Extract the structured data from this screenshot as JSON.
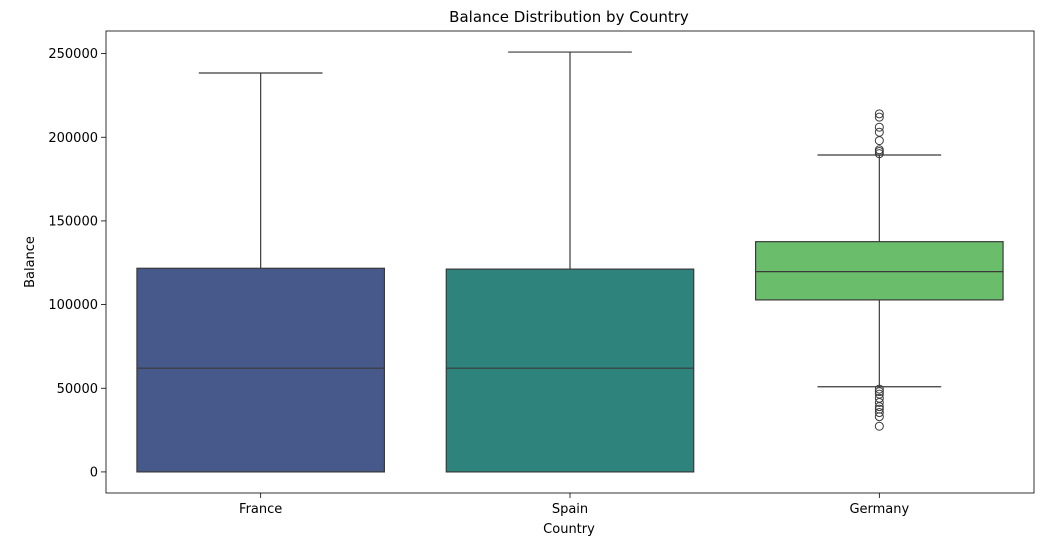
{
  "chart_data": {
    "type": "box",
    "title": "Balance Distribution by Country",
    "xlabel": "Country",
    "ylabel": "Balance",
    "ylim": [
      -12600,
      263500
    ],
    "yticks": [
      0,
      50000,
      100000,
      150000,
      200000,
      250000
    ],
    "ytick_labels": [
      "0",
      "50000",
      "100000",
      "150000",
      "200000",
      "250000"
    ],
    "grid": false,
    "categories": [
      "France",
      "Spain",
      "Germany"
    ],
    "boxes": [
      {
        "category": "France",
        "color": "#46598a",
        "whisker_low": 0,
        "q1": 0,
        "median": 62000,
        "q3": 121700,
        "whisker_high": 238400,
        "outliers": []
      },
      {
        "category": "Spain",
        "color": "#2e847d",
        "whisker_low": 0,
        "q1": 0,
        "median": 62000,
        "q3": 121200,
        "whisker_high": 250900,
        "outliers": []
      },
      {
        "category": "Germany",
        "color": "#6abd6a",
        "whisker_low": 50900,
        "q1": 102800,
        "median": 119700,
        "q3": 137600,
        "whisker_high": 189400,
        "outliers": [
          27300,
          33000,
          35500,
          37500,
          39000,
          41500,
          44000,
          46500,
          48000,
          49500,
          190200,
          191500,
          192500,
          198000,
          203000,
          206000,
          212000,
          214000
        ]
      }
    ]
  }
}
